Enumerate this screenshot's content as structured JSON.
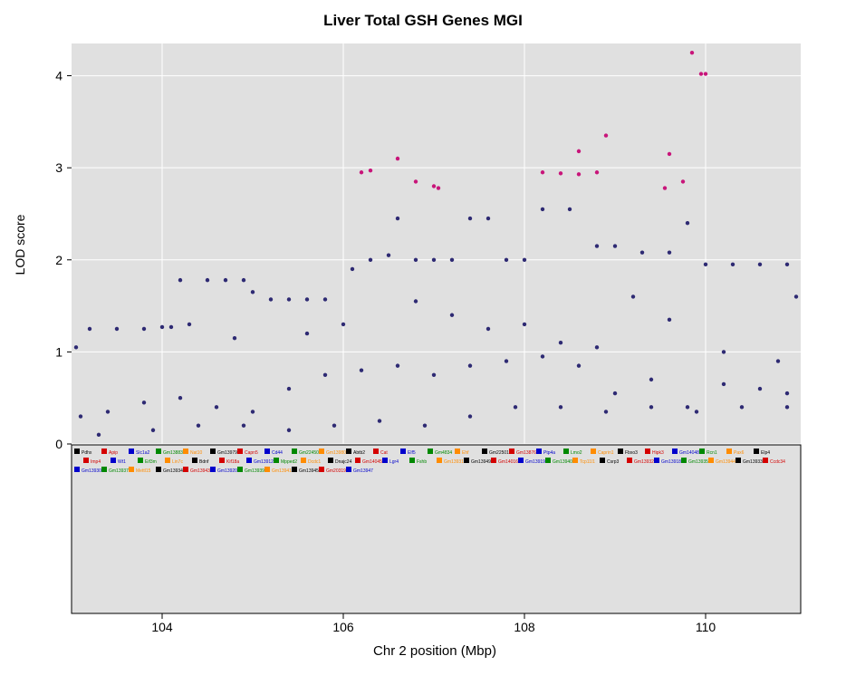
{
  "chart_data": {
    "type": "scatter",
    "title": "Liver Total GSH Genes MGI",
    "xlabel": "Chr 2 position (Mbp)",
    "ylabel": "LOD score",
    "xlim": [
      103.0,
      111.05
    ],
    "ylim": [
      0,
      4.35
    ],
    "x_ticks": [
      "104",
      "106",
      "108",
      "110"
    ],
    "y_ticks": [
      "0",
      "1",
      "2",
      "3",
      "4"
    ],
    "grid": true,
    "colors": {
      "panel": "#e0e0e0",
      "grid": "#ffffff",
      "points": "#2e2a73",
      "highlight": "#c8157a"
    },
    "series": [
      {
        "values": [
          [
            103.05,
            1.05
          ],
          [
            103.2,
            1.25
          ],
          [
            103.5,
            1.25
          ],
          [
            103.8,
            1.25
          ],
          [
            104.0,
            1.27
          ],
          [
            104.1,
            1.27
          ],
          [
            104.2,
            1.78
          ],
          [
            104.5,
            1.78
          ],
          [
            104.7,
            1.78
          ],
          [
            104.9,
            1.78
          ],
          [
            105.0,
            1.65
          ],
          [
            105.2,
            1.57
          ],
          [
            105.4,
            1.57
          ],
          [
            105.6,
            1.57
          ],
          [
            105.8,
            1.57
          ],
          [
            106.1,
            1.9
          ],
          [
            106.3,
            2.0
          ],
          [
            106.5,
            2.05
          ],
          [
            106.6,
            2.45
          ],
          [
            106.8,
            2.0
          ],
          [
            107.0,
            2.0
          ],
          [
            107.2,
            2.0
          ],
          [
            107.4,
            2.45
          ],
          [
            107.6,
            2.45
          ],
          [
            107.8,
            2.0
          ],
          [
            108.0,
            2.0
          ],
          [
            108.2,
            2.55
          ],
          [
            108.5,
            2.55
          ],
          [
            108.8,
            2.15
          ],
          [
            109.0,
            2.15
          ],
          [
            109.3,
            2.08
          ],
          [
            109.6,
            2.08
          ],
          [
            109.8,
            2.4
          ],
          [
            110.0,
            1.95
          ],
          [
            110.3,
            1.95
          ],
          [
            110.6,
            1.95
          ],
          [
            110.9,
            1.95
          ],
          [
            111.0,
            1.6
          ],
          [
            103.1,
            0.3
          ],
          [
            103.4,
            0.35
          ],
          [
            103.8,
            0.45
          ],
          [
            104.2,
            0.5
          ],
          [
            104.6,
            0.4
          ],
          [
            105.0,
            0.35
          ],
          [
            105.4,
            0.6
          ],
          [
            105.8,
            0.75
          ],
          [
            106.2,
            0.8
          ],
          [
            106.6,
            0.85
          ],
          [
            107.0,
            0.75
          ],
          [
            107.4,
            0.85
          ],
          [
            107.8,
            0.9
          ],
          [
            108.2,
            0.95
          ],
          [
            108.6,
            0.85
          ],
          [
            109.0,
            0.55
          ],
          [
            109.4,
            0.7
          ],
          [
            109.8,
            0.4
          ],
          [
            110.2,
            0.65
          ],
          [
            110.6,
            0.6
          ],
          [
            110.9,
            0.55
          ],
          [
            103.3,
            0.1
          ],
          [
            103.9,
            0.15
          ],
          [
            104.4,
            0.2
          ],
          [
            104.9,
            0.2
          ],
          [
            105.4,
            0.15
          ],
          [
            105.9,
            0.2
          ],
          [
            106.4,
            0.25
          ],
          [
            106.9,
            0.2
          ],
          [
            107.4,
            0.3
          ],
          [
            107.9,
            0.4
          ],
          [
            108.4,
            0.4
          ],
          [
            108.9,
            0.35
          ],
          [
            109.4,
            0.4
          ],
          [
            109.9,
            0.35
          ],
          [
            110.4,
            0.4
          ],
          [
            110.9,
            0.4
          ],
          [
            104.3,
            1.3
          ],
          [
            104.8,
            1.15
          ],
          [
            105.6,
            1.2
          ],
          [
            106.0,
            1.3
          ],
          [
            106.8,
            1.55
          ],
          [
            107.2,
            1.4
          ],
          [
            107.6,
            1.25
          ],
          [
            108.0,
            1.3
          ],
          [
            108.4,
            1.1
          ],
          [
            108.8,
            1.05
          ],
          [
            109.2,
            1.6
          ],
          [
            109.6,
            1.35
          ],
          [
            110.2,
            1.0
          ],
          [
            110.8,
            0.9
          ]
        ]
      },
      {
        "values": [
          [
            106.2,
            2.95
          ],
          [
            106.3,
            2.97
          ],
          [
            106.6,
            3.1
          ],
          [
            106.8,
            2.85
          ],
          [
            107.0,
            2.8
          ],
          [
            107.05,
            2.78
          ],
          [
            108.2,
            2.95
          ],
          [
            108.4,
            2.94
          ],
          [
            108.6,
            2.93
          ],
          [
            108.8,
            2.95
          ],
          [
            108.6,
            3.18
          ],
          [
            108.9,
            3.35
          ],
          [
            109.55,
            2.78
          ],
          [
            109.6,
            3.15
          ],
          [
            109.75,
            2.85
          ],
          [
            109.85,
            4.25
          ],
          [
            109.95,
            4.02
          ],
          [
            110.0,
            4.02
          ]
        ]
      }
    ]
  },
  "gene_track": {
    "labels": [
      "Pdhx",
      "Apip",
      "Slc1a2",
      "Gm13883",
      "Nat10",
      "Gm13979",
      "Capn5",
      "Cd44",
      "Gm22450",
      "Gm13980",
      "Abtb2",
      "Cat",
      "Elf5",
      "Gm4834",
      "Ehf",
      "Gm22501",
      "Gm13876",
      "Ptp4a",
      "Lmo2",
      "Caprin1",
      "Fbxo3",
      "Hipk3",
      "Gm14048",
      "Rcn1",
      "Pax6",
      "Elp4",
      "Imp4",
      "Wt1",
      "Eif3m",
      "Lin7c",
      "Bdnf",
      "Kif18a",
      "Gm13912",
      "Mpped2",
      "Dcdc1",
      "Dnajc24",
      "Gm14045",
      "Lgr4",
      "Fshb",
      "Gm13931",
      "Gm13949",
      "Gm14016",
      "Gm13919",
      "Gm13940",
      "Tcp11l1",
      "Csrp3",
      "Gm13932",
      "Gm13918",
      "Gm13935",
      "Gm13944",
      "Gm13933",
      "Ccdc34",
      "Gm13930",
      "Gm13937",
      "Mettl15",
      "Gm13934",
      "Gm13943",
      "Gm13920",
      "Gm13939",
      "Gm13941",
      "Gm13945",
      "Gm20319",
      "Gm13947"
    ]
  }
}
